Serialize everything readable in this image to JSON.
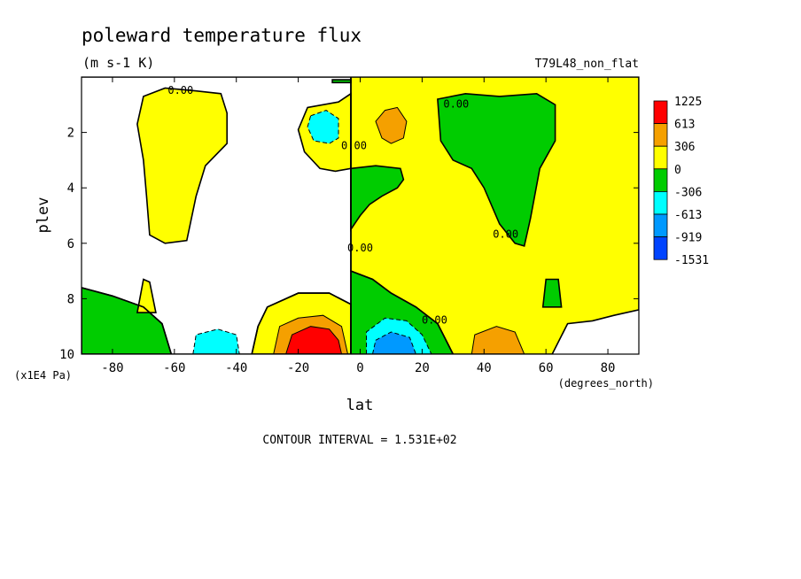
{
  "chart_data": {
    "type": "heatmap",
    "title": "poleward temperature flux",
    "subtitle": "(m s-1 K)",
    "run_label": "T79L48_non_flat",
    "xlabel": "lat",
    "x_units": "(degrees_north)",
    "ylabel": "plev",
    "y_units": "(x1E4 Pa)",
    "xlim": [
      -90,
      90
    ],
    "ylim": [
      10,
      0
    ],
    "x_ticks": [
      "-80",
      "-60",
      "-40",
      "-20",
      "0",
      "20",
      "40",
      "60",
      "80"
    ],
    "y_ticks": [
      "2",
      "4",
      "6",
      "8",
      "10"
    ],
    "contour_interval_text": "CONTOUR INTERVAL = 1.531E+02",
    "contour_labels": [
      {
        "text": "0.00",
        "lat": -58,
        "plev": 0.6
      },
      {
        "text": "0.00",
        "lat": 31,
        "plev": 1.1
      },
      {
        "text": "0.00",
        "lat": -2,
        "plev": 2.6
      },
      {
        "text": "0.00",
        "lat": 0,
        "plev": 6.3
      },
      {
        "text": "0.00",
        "lat": 47,
        "plev": 5.8
      },
      {
        "text": "0.00",
        "lat": 24,
        "plev": 8.9
      }
    ],
    "colorbar": {
      "levels": [
        "1225",
        "613",
        "306",
        "0",
        "-306",
        "-613",
        "-919",
        "-1531"
      ],
      "colors": [
        "#ff0000",
        "#f5a000",
        "#ffff00",
        "#00cc00",
        "#00ffff",
        "#0099ff",
        "#0044ff"
      ]
    },
    "fill_colors": {
      "positive_1": "#ffff00",
      "positive_2": "#f5a000",
      "positive_high": "#ff0000",
      "negative_1": "#00cc00",
      "negative_2": "#00ffff",
      "negative_3": "#0099ff"
    },
    "regions": [
      {
        "sign": "positive",
        "level": 1,
        "points": [
          [
            -90,
            7.6
          ],
          [
            -80,
            7.9
          ],
          [
            -70,
            8.3
          ],
          [
            -64,
            8.9
          ],
          [
            -61,
            10
          ],
          [
            -90,
            10
          ]
        ]
      },
      {
        "sign": "negative",
        "level": 1,
        "points": [
          [
            -90,
            0
          ],
          [
            -3,
            0
          ],
          [
            -3,
            10
          ],
          [
            -90,
            10
          ],
          [
            -90,
            7.6
          ],
          [
            -80,
            7.9
          ],
          [
            -70,
            8.3
          ],
          [
            -64,
            8.9
          ],
          [
            -61,
            10
          ],
          [
            -35,
            10
          ],
          [
            -33,
            9.0
          ],
          [
            -30,
            8.3
          ],
          [
            -20,
            7.8
          ],
          [
            -10,
            7.8
          ],
          [
            -3,
            8.2
          ],
          [
            -3,
            0
          ]
        ]
      },
      {
        "sign": "positive",
        "level": 1,
        "points": [
          [
            -70,
            0.7
          ],
          [
            -63,
            0.4
          ],
          [
            -53,
            0.5
          ],
          [
            -45,
            0.6
          ],
          [
            -43,
            1.3
          ],
          [
            -43,
            2.4
          ],
          [
            -50,
            3.2
          ],
          [
            -53,
            4.3
          ],
          [
            -56,
            5.9
          ],
          [
            -63,
            6.0
          ],
          [
            -68,
            5.7
          ],
          [
            -69,
            4.3
          ],
          [
            -70,
            3.0
          ],
          [
            -72,
            1.7
          ]
        ]
      },
      {
        "sign": "positive",
        "level": 1,
        "points": [
          [
            -17,
            1.1
          ],
          [
            -7,
            0.9
          ],
          [
            -3,
            0.6
          ],
          [
            -3,
            2.8
          ],
          [
            -3,
            3.3
          ],
          [
            -8,
            3.4
          ],
          [
            -13,
            3.3
          ],
          [
            -18,
            2.7
          ],
          [
            -20,
            1.9
          ]
        ]
      },
      {
        "sign": "positive",
        "level": 1,
        "points": [
          [
            -70,
            7.3
          ],
          [
            -68,
            7.4
          ],
          [
            -66,
            8.5
          ],
          [
            -72,
            8.5
          ]
        ]
      },
      {
        "sign": "positive",
        "level": 1,
        "points": [
          [
            -3,
            0
          ],
          [
            90,
            0
          ],
          [
            90,
            8.4
          ],
          [
            82,
            8.6
          ],
          [
            75,
            8.8
          ],
          [
            67,
            8.9
          ],
          [
            62,
            10
          ],
          [
            30,
            10
          ],
          [
            25,
            8.9
          ],
          [
            18,
            8.3
          ],
          [
            10,
            7.8
          ],
          [
            4,
            7.3
          ],
          [
            -3,
            7.0
          ]
        ]
      },
      {
        "sign": "negative",
        "level": 1,
        "points": [
          [
            25,
            0.8
          ],
          [
            34,
            0.6
          ],
          [
            45,
            0.7
          ],
          [
            57,
            0.6
          ],
          [
            63,
            1.0
          ],
          [
            63,
            2.3
          ],
          [
            58,
            3.3
          ],
          [
            55,
            5.1
          ],
          [
            53,
            6.1
          ],
          [
            50,
            6.0
          ],
          [
            45,
            5.3
          ],
          [
            40,
            4.0
          ],
          [
            36,
            3.3
          ],
          [
            30,
            3.0
          ],
          [
            26,
            2.3
          ]
        ]
      },
      {
        "sign": "negative",
        "level": 1,
        "points": [
          [
            -3,
            3.3
          ],
          [
            5,
            3.2
          ],
          [
            13,
            3.3
          ],
          [
            14,
            3.7
          ],
          [
            12,
            4.0
          ],
          [
            7,
            4.3
          ],
          [
            3,
            4.6
          ],
          [
            0,
            5.0
          ],
          [
            -3,
            5.5
          ]
        ]
      },
      {
        "sign": "negative",
        "level": 1,
        "points": [
          [
            60,
            7.3
          ],
          [
            64,
            7.3
          ],
          [
            65,
            8.3
          ],
          [
            59,
            8.3
          ]
        ]
      },
      {
        "sign": "negative",
        "level": 1,
        "points": [
          [
            -3,
            7.0
          ],
          [
            4,
            7.3
          ],
          [
            10,
            7.8
          ],
          [
            18,
            8.3
          ],
          [
            25,
            8.9
          ],
          [
            30,
            10
          ],
          [
            -3,
            10
          ]
        ]
      },
      {
        "sign": "negative",
        "level": 1,
        "points": [
          [
            -9,
            0.1
          ],
          [
            -3,
            0.1
          ],
          [
            -3,
            0.2
          ],
          [
            -9,
            0.2
          ]
        ]
      },
      {
        "sign": "positive",
        "level": 1,
        "points": [
          [
            -35,
            10
          ],
          [
            -33,
            9.0
          ],
          [
            -30,
            8.3
          ],
          [
            -20,
            7.8
          ],
          [
            -10,
            7.8
          ],
          [
            -3,
            8.2
          ],
          [
            -3,
            10
          ]
        ]
      },
      {
        "sign": "positive",
        "level": 2,
        "points": [
          [
            -28,
            10
          ],
          [
            -26,
            9.0
          ],
          [
            -20,
            8.7
          ],
          [
            -12,
            8.6
          ],
          [
            -6,
            9.0
          ],
          [
            -4,
            10
          ]
        ]
      },
      {
        "sign": "positive",
        "level": "high",
        "points": [
          [
            -24,
            10
          ],
          [
            -22,
            9.3
          ],
          [
            -16,
            9.0
          ],
          [
            -10,
            9.1
          ],
          [
            -7,
            9.5
          ],
          [
            -6,
            10
          ]
        ]
      },
      {
        "sign": "negative",
        "level": 2,
        "points": [
          [
            -54,
            10
          ],
          [
            -53,
            9.3
          ],
          [
            -46,
            9.1
          ],
          [
            -40,
            9.3
          ],
          [
            -39,
            10
          ]
        ]
      },
      {
        "sign": "negative",
        "level": 2,
        "points": [
          [
            2,
            10
          ],
          [
            2,
            9.2
          ],
          [
            8,
            8.7
          ],
          [
            15,
            8.8
          ],
          [
            20,
            9.3
          ],
          [
            23,
            10
          ]
        ]
      },
      {
        "sign": "negative",
        "level": 3,
        "points": [
          [
            4,
            10
          ],
          [
            5,
            9.5
          ],
          [
            10,
            9.2
          ],
          [
            16,
            9.4
          ],
          [
            18,
            10
          ]
        ]
      },
      {
        "sign": "positive",
        "level": 2,
        "points": [
          [
            36,
            10
          ],
          [
            37,
            9.3
          ],
          [
            44,
            9.0
          ],
          [
            50,
            9.2
          ],
          [
            53,
            10
          ]
        ]
      },
      {
        "sign": "negative",
        "level": 2,
        "points": [
          [
            -16,
            1.4
          ],
          [
            -11,
            1.2
          ],
          [
            -7,
            1.5
          ],
          [
            -7,
            2.2
          ],
          [
            -10,
            2.4
          ],
          [
            -15,
            2.3
          ],
          [
            -17,
            1.8
          ]
        ]
      },
      {
        "sign": "positive",
        "level": 2,
        "points": [
          [
            5,
            1.6
          ],
          [
            8,
            1.2
          ],
          [
            12,
            1.1
          ],
          [
            15,
            1.6
          ],
          [
            14,
            2.2
          ],
          [
            10,
            2.4
          ],
          [
            7,
            2.2
          ]
        ]
      }
    ]
  }
}
